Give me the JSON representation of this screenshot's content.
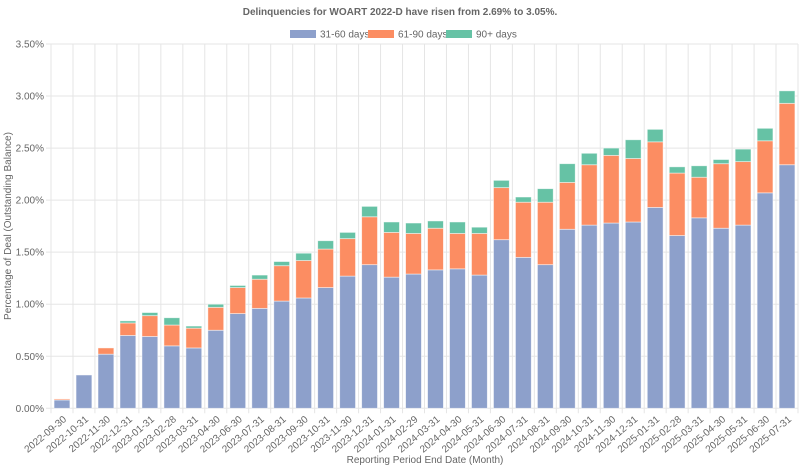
{
  "chart_data": {
    "type": "bar",
    "stacked": true,
    "title": "Delinquencies for WOART 2022-D have risen from 2.69% to 3.05%.",
    "xlabel": "Reporting Period End Date (Month)",
    "ylabel": "Percentage of Deal (Outstanding Balance)",
    "ylim": [
      0,
      3.5
    ],
    "yticks": [
      "0.00%",
      "0.50%",
      "1.00%",
      "1.50%",
      "2.00%",
      "2.50%",
      "3.00%",
      "3.50%"
    ],
    "ytick_values": [
      0,
      0.5,
      1.0,
      1.5,
      2.0,
      2.5,
      3.0,
      3.5
    ],
    "grid": true,
    "legend_position": "top",
    "categories": [
      "2022-09-30",
      "2022-10-31",
      "2022-11-30",
      "2022-12-31",
      "2023-01-31",
      "2023-02-28",
      "2023-03-31",
      "2023-04-30",
      "2023-06-30",
      "2023-07-31",
      "2023-08-31",
      "2023-09-30",
      "2023-10-31",
      "2023-11-30",
      "2023-12-31",
      "2024-01-31",
      "2024-02-29",
      "2024-03-31",
      "2024-04-30",
      "2024-05-31",
      "2024-06-30",
      "2024-07-31",
      "2024-08-31",
      "2024-09-30",
      "2024-10-31",
      "2024-11-30",
      "2024-12-31",
      "2025-01-31",
      "2025-02-28",
      "2025-03-31",
      "2025-04-30",
      "2025-05-31",
      "2025-06-30",
      "2025-07-31"
    ],
    "series": [
      {
        "name": "31-60 days",
        "color": "#8da0cb",
        "values": [
          0.08,
          0.32,
          0.52,
          0.7,
          0.69,
          0.6,
          0.58,
          0.75,
          0.91,
          0.96,
          1.03,
          1.06,
          1.16,
          1.27,
          1.38,
          1.26,
          1.29,
          1.33,
          1.34,
          1.28,
          1.62,
          1.45,
          1.38,
          1.72,
          1.76,
          1.78,
          1.79,
          1.93,
          1.66,
          1.83,
          1.73,
          1.76,
          2.07,
          2.34
        ]
      },
      {
        "name": "61-90 days",
        "color": "#fc8d62",
        "values": [
          0.01,
          0.0,
          0.06,
          0.12,
          0.2,
          0.2,
          0.19,
          0.22,
          0.25,
          0.28,
          0.34,
          0.36,
          0.37,
          0.36,
          0.46,
          0.43,
          0.39,
          0.4,
          0.34,
          0.4,
          0.5,
          0.53,
          0.6,
          0.45,
          0.58,
          0.65,
          0.61,
          0.63,
          0.6,
          0.39,
          0.62,
          0.61,
          0.5,
          0.59
        ]
      },
      {
        "name": "90+ days",
        "color": "#66c2a5",
        "values": [
          0.0,
          0.0,
          0.0,
          0.02,
          0.03,
          0.07,
          0.02,
          0.03,
          0.02,
          0.04,
          0.04,
          0.07,
          0.08,
          0.06,
          0.1,
          0.1,
          0.1,
          0.07,
          0.11,
          0.06,
          0.07,
          0.05,
          0.13,
          0.18,
          0.11,
          0.07,
          0.18,
          0.12,
          0.06,
          0.11,
          0.04,
          0.12,
          0.12,
          0.12
        ]
      }
    ]
  }
}
